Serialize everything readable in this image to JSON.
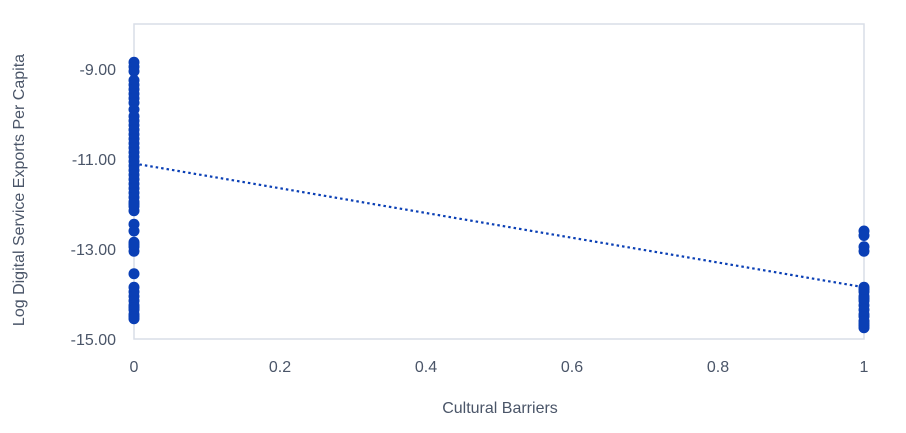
{
  "chart_data": {
    "type": "scatter",
    "title": "",
    "xlabel": "Cultural Barriers",
    "ylabel": "Log Digital Service Exports Per Capita",
    "xlim": [
      0,
      1
    ],
    "ylim": [
      -15,
      -8
    ],
    "x_ticks": [
      "0",
      "0.2",
      "0.4",
      "0.6",
      "0.8",
      "1"
    ],
    "y_ticks": [
      "-9.00",
      "-11.00",
      "-13.00",
      "-15.00"
    ],
    "grid": false,
    "legend": "none",
    "colors": {
      "points": "#0a3fb5",
      "trendline": "#0a3fb5",
      "axis": "#d9dee7",
      "text": "#4a5568"
    },
    "series": [
      {
        "x": [
          0,
          0,
          0,
          0,
          0,
          0,
          0,
          0,
          0,
          0,
          0,
          0,
          0,
          0,
          0,
          0,
          0,
          0,
          0,
          0,
          0,
          0,
          0,
          0,
          0,
          0,
          0,
          0,
          0,
          0,
          0,
          0,
          0,
          0,
          0,
          0,
          0,
          0,
          0,
          0,
          0,
          0,
          0,
          0,
          0,
          0,
          0,
          0,
          0,
          0,
          1,
          1,
          1,
          1,
          1,
          1,
          1,
          1,
          1,
          1,
          1,
          1,
          1,
          1,
          1,
          1,
          1,
          1
        ],
        "y": [
          -8.85,
          -8.95,
          -9.05,
          -9.25,
          -9.35,
          -9.45,
          -9.55,
          -9.65,
          -9.75,
          -9.9,
          -10.05,
          -10.15,
          -10.25,
          -10.35,
          -10.45,
          -10.55,
          -10.65,
          -10.75,
          -10.85,
          -10.95,
          -11.05,
          -11.15,
          -11.25,
          -11.35,
          -11.45,
          -11.55,
          -11.65,
          -11.75,
          -11.85,
          -11.95,
          -12.05,
          -12.15,
          -12.45,
          -12.6,
          -12.85,
          -12.95,
          -13.05,
          -13.55,
          -13.85,
          -13.95,
          -14.05,
          -14.15,
          -14.25,
          -14.3,
          -14.35,
          -14.45,
          -14.5,
          -14.55,
          -12.0,
          -12.9,
          -12.6,
          -12.7,
          -12.95,
          -13.05,
          -13.85,
          -13.95,
          -14.05,
          -14.15,
          -14.25,
          -14.35,
          -14.45,
          -14.5,
          -14.6,
          -14.7,
          -14.75,
          -14.1,
          -13.9,
          -14.65
        ]
      }
    ],
    "trendline": {
      "style": "dotted",
      "x": [
        0,
        1
      ],
      "y": [
        -11.1,
        -13.85
      ]
    }
  }
}
